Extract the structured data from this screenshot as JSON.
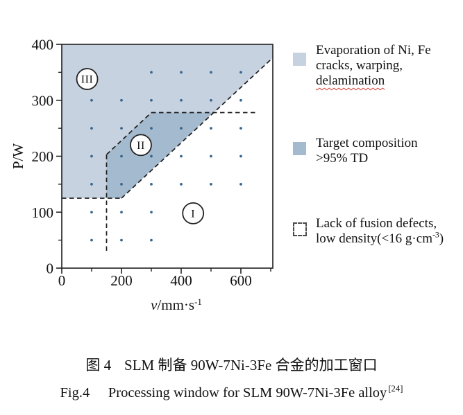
{
  "colors": {
    "region_iii_fill": "#c7d2e0",
    "region_ii_fill": "#a4bace",
    "point": "#38668f",
    "line": "#1c1c1c",
    "squiggle_red": "#d43a2f"
  },
  "legend": {
    "evaporation": {
      "line1": "Evaporation of Ni, Fe",
      "line2": "cracks, warping,",
      "line3": "delamination"
    },
    "target": {
      "line1": "Target composition",
      "line2": ">95% TD"
    },
    "lack": {
      "line1": "Lack of fusion defects,",
      "line2_pre": "low density(<16 g·cm",
      "line2_sup": "-3",
      "line2_post": ")"
    }
  },
  "caption": {
    "zh_fig": "图 4",
    "zh_text": "SLM 制备 90W-7Ni-3Fe 合金的加工窗口",
    "en_fig": "Fig.4",
    "en_text": "Processing window for SLM 90W-7Ni-3Fe alloy",
    "en_ref": "[24]"
  },
  "chart_data": {
    "type": "scatter",
    "title": "Processing window for SLM 90W-7Ni-3Fe alloy",
    "xlabel": "v/mm·s⁻¹",
    "xlabel_parts": {
      "var": "v",
      "rest": "/mm·s",
      "sup": "-1"
    },
    "ylabel": "P/W",
    "xlim": [
      0,
      707
    ],
    "ylim": [
      0,
      400
    ],
    "x_major_ticks": [
      0,
      200,
      400,
      600
    ],
    "x_minor_ticks": [
      100,
      300,
      500,
      700
    ],
    "y_major_ticks": [
      0,
      100,
      200,
      300,
      400
    ],
    "y_minor_ticks": [
      50,
      150,
      250,
      350
    ],
    "grid": false,
    "legend_position": "right",
    "points_format": "[v, P]",
    "points": [
      [
        300,
        350
      ],
      [
        400,
        350
      ],
      [
        500,
        350
      ],
      [
        600,
        350
      ],
      [
        100,
        300
      ],
      [
        200,
        300
      ],
      [
        300,
        300
      ],
      [
        400,
        300
      ],
      [
        500,
        300
      ],
      [
        600,
        300
      ],
      [
        100,
        250
      ],
      [
        200,
        250
      ],
      [
        300,
        250
      ],
      [
        400,
        250
      ],
      [
        500,
        250
      ],
      [
        600,
        250
      ],
      [
        100,
        200
      ],
      [
        200,
        200
      ],
      [
        300,
        200
      ],
      [
        400,
        200
      ],
      [
        500,
        200
      ],
      [
        600,
        200
      ],
      [
        100,
        150
      ],
      [
        200,
        150
      ],
      [
        300,
        150
      ],
      [
        400,
        150
      ],
      [
        500,
        150
      ],
      [
        600,
        150
      ],
      [
        100,
        100
      ],
      [
        200,
        100
      ],
      [
        300,
        100
      ],
      [
        100,
        50
      ],
      [
        200,
        50
      ],
      [
        300,
        50
      ]
    ],
    "regions": [
      {
        "id": "III",
        "label": "III",
        "meaning": "Evaporation of Ni, Fe cracks, warping, delamination",
        "fill": "#c7d2e0",
        "polygon": [
          [
            0,
            125
          ],
          [
            200,
            125
          ],
          [
            707,
            376
          ],
          [
            707,
            400
          ],
          [
            0,
            400
          ]
        ],
        "label_circle": {
          "v": 85,
          "P": 338
        }
      },
      {
        "id": "II",
        "label": "II",
        "meaning": "Target composition >95% TD",
        "fill": "#a4bace",
        "polygon": [
          [
            150,
            125
          ],
          [
            200,
            125
          ],
          [
            505,
            278
          ],
          [
            300,
            278
          ],
          [
            150,
            203
          ]
        ],
        "label_circle": {
          "v": 265,
          "P": 220
        }
      },
      {
        "id": "I",
        "label": "I",
        "meaning": "Lack of fusion defects, low density (<16 g·cm⁻³)",
        "fill": "#ffffff",
        "polygon": null,
        "label_circle": {
          "v": 440,
          "P": 98
        }
      }
    ],
    "dashed_boundaries": [
      {
        "name": "lower-power-limit",
        "pts": [
          [
            0,
            125
          ],
          [
            200,
            125
          ]
        ]
      },
      {
        "name": "min-speed-limit",
        "pts": [
          [
            150,
            31
          ],
          [
            150,
            203
          ]
        ]
      },
      {
        "name": "region2-upper-left-edge",
        "pts": [
          [
            150,
            203
          ],
          [
            300,
            278
          ]
        ]
      },
      {
        "name": "upper-power-limit",
        "pts": [
          [
            300,
            278
          ],
          [
            650,
            278
          ]
        ]
      },
      {
        "name": "energy-density-diagonal",
        "pts": [
          [
            200,
            125
          ],
          [
            707,
            376
          ]
        ]
      }
    ]
  }
}
